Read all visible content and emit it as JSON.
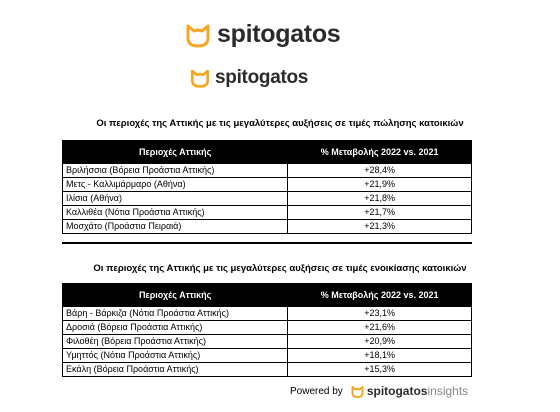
{
  "logos": [
    "spitogatos",
    "spitogatos"
  ],
  "tables": [
    {
      "title": "Οι περιοχές της Αττικής με τις μεγαλύτερες αυξήσεις σε τιμές πώλησης κατοικιών",
      "headers": [
        "Περιοχές Αττικής",
        "% Μεταβολής 2022 vs. 2021"
      ],
      "rows": [
        [
          "Βριλήσσια (Βόρεια Προάστια Αττικής)",
          "+28,4%"
        ],
        [
          "Μετς - Καλλιμάρμαρο (Αθήνα)",
          "+21,9%"
        ],
        [
          "Ιλίσια (Αθήνα)",
          "+21,8%"
        ],
        [
          "Καλλιθέα (Νότια Προάστια Αττικής)",
          "+21,7%"
        ],
        [
          "Μοσχάτο (Προάστια Πειραιά)",
          "+21,3%"
        ]
      ]
    },
    {
      "title": "Οι περιοχές της Αττικής με τις μεγαλύτερες αυξήσεις σε τιμές ενοικίασης κατοικιών",
      "headers": [
        "Περιοχές Αττικής",
        "% Μεταβολής 2022 vs. 2021"
      ],
      "rows": [
        [
          "Βάρη - Βάρκιζα (Νότια Προάστια Αττικής)",
          "+23,1%"
        ],
        [
          "Δροσιά (Βόρεια Προάστια Αττικής)",
          "+21,6%"
        ],
        [
          "Φιλοθέη (Βόρεια Προάστια Αττικής)",
          "+20,9%"
        ],
        [
          "Υμηττός (Νότια Προάστια Αττικής)",
          "+18,1%"
        ],
        [
          "Εκάλη (Βόρεια Προάστια Αττικής)",
          "+15,3%"
        ]
      ]
    }
  ],
  "footer": {
    "powered": "Powered by",
    "brand": "spitogatos",
    "suffix": "insights"
  }
}
